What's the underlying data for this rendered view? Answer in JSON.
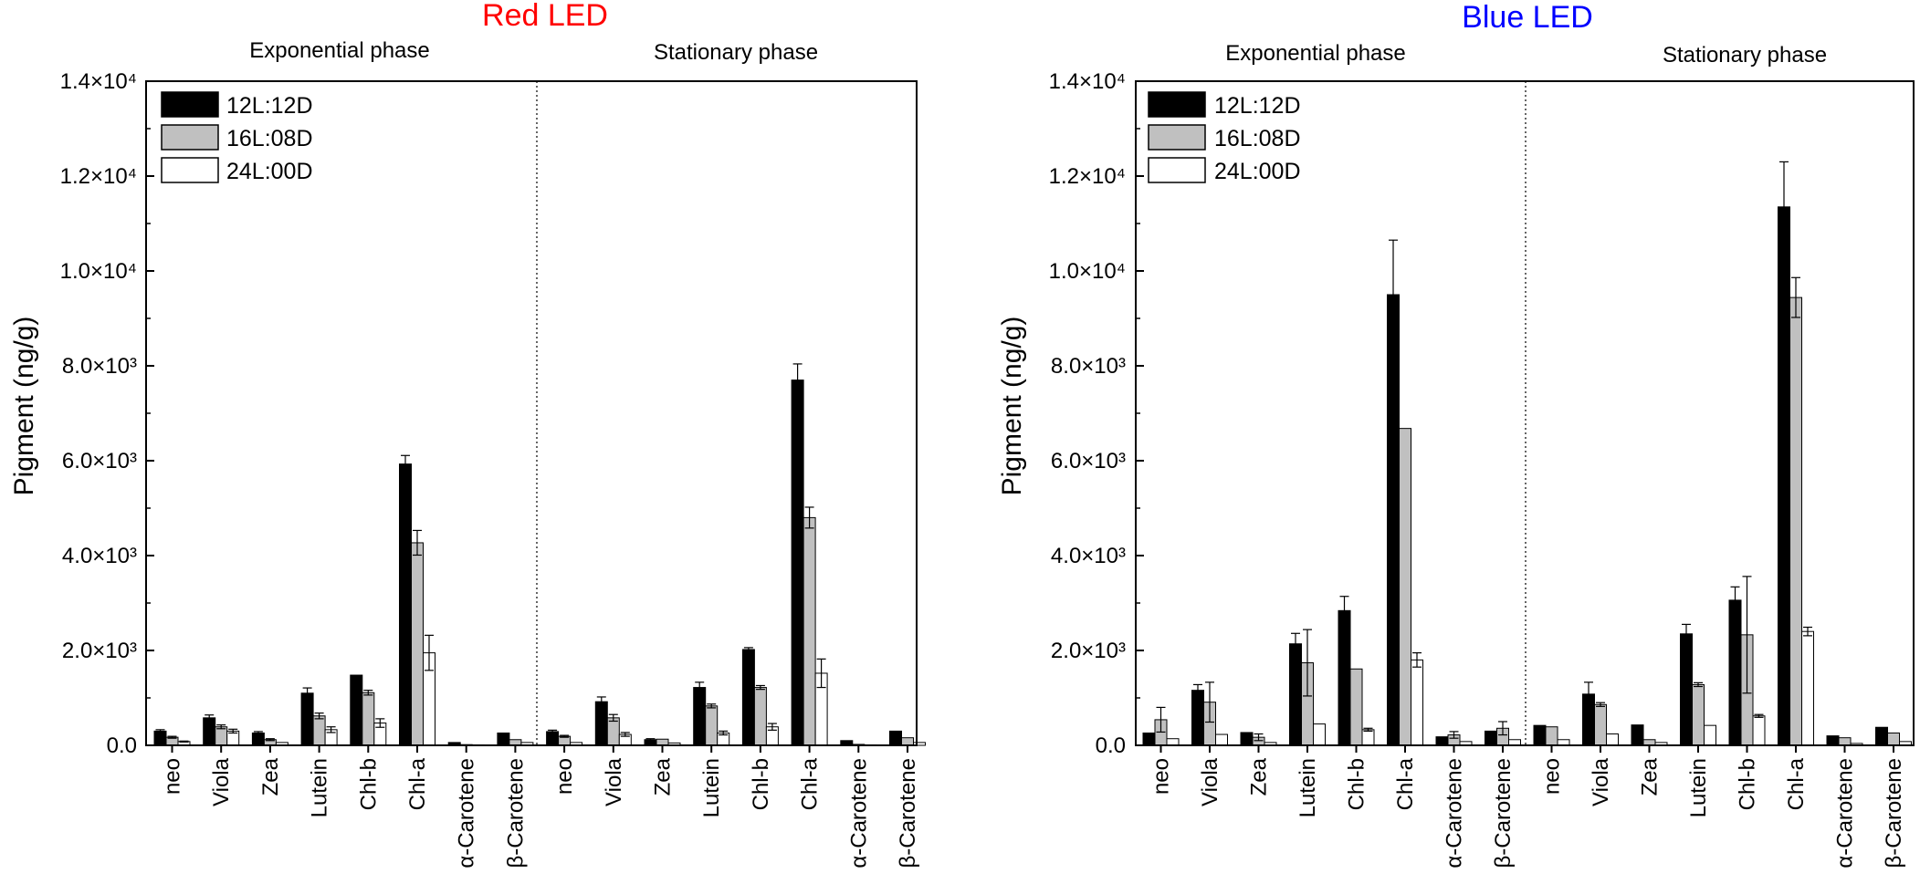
{
  "chart_data": [
    {
      "type": "bar",
      "title": "Red LED",
      "title_color": "#ff0000",
      "ylabel": "Pigment (ng/g)",
      "xlabel": "",
      "ylim": [
        0,
        14000
      ],
      "ytick_labels": [
        "0.0",
        "2.0×10³",
        "4.0×10³",
        "6.0×10³",
        "8.0×10³",
        "1.0×10⁴",
        "1.2×10⁴",
        "1.4×10⁴"
      ],
      "phases": [
        "Exponential phase",
        "Stationary phase"
      ],
      "categories": [
        "neo",
        "Viola",
        "Zea",
        "Lutein",
        "Chl-b",
        "Chl-a",
        "α-Carotene",
        "β-Carotene"
      ],
      "legend_position": "top-left",
      "series": [
        {
          "name": "12L:12D",
          "color": "#000000",
          "exponential": [
            300,
            580,
            260,
            1100,
            1480,
            5930,
            60,
            260
          ],
          "exponential_err": [
            30,
            60,
            30,
            110,
            0,
            180,
            0,
            0
          ],
          "stationary": [
            290,
            920,
            120,
            1220,
            2020,
            7700,
            100,
            300
          ],
          "stationary_err": [
            30,
            100,
            20,
            110,
            40,
            340,
            0,
            0
          ]
        },
        {
          "name": "16L:08D",
          "color": "#c0c0c0",
          "exponential": [
            170,
            390,
            120,
            620,
            1110,
            4270,
            15,
            120
          ],
          "exponential_err": [
            20,
            40,
            20,
            60,
            50,
            260,
            0,
            0
          ],
          "stationary": [
            190,
            580,
            130,
            830,
            1220,
            4800,
            20,
            160
          ],
          "stationary_err": [
            20,
            70,
            0,
            40,
            40,
            220,
            0,
            0
          ]
        },
        {
          "name": "24L:00D",
          "color": "#ffffff",
          "exponential": [
            80,
            300,
            60,
            330,
            470,
            1950,
            10,
            60
          ],
          "exponential_err": [
            10,
            40,
            0,
            60,
            90,
            370,
            0,
            0
          ],
          "stationary": [
            60,
            230,
            50,
            260,
            390,
            1520,
            10,
            60
          ],
          "stationary_err": [
            0,
            40,
            0,
            40,
            70,
            300,
            0,
            0
          ]
        }
      ]
    },
    {
      "type": "bar",
      "title": "Blue LED",
      "title_color": "#0000ff",
      "ylabel": "Pigment (ng/g)",
      "xlabel": "",
      "ylim": [
        0,
        14000
      ],
      "ytick_labels": [
        "0.0",
        "2.0×10³",
        "4.0×10³",
        "6.0×10³",
        "8.0×10³",
        "1.0×10⁴",
        "1.2×10⁴",
        "1.4×10⁴"
      ],
      "phases": [
        "Exponential phase",
        "Stationary phase"
      ],
      "categories": [
        "neo",
        "Viola",
        "Zea",
        "Lutein",
        "Chl-b",
        "Chl-a",
        "α-Carotene",
        "β-Carotene"
      ],
      "legend_position": "top-left",
      "series": [
        {
          "name": "12L:12D",
          "color": "#000000",
          "exponential": [
            260,
            1160,
            270,
            2140,
            2840,
            9500,
            180,
            300
          ],
          "exponential_err": [
            0,
            120,
            0,
            220,
            300,
            1150,
            0,
            0
          ],
          "stationary": [
            420,
            1080,
            430,
            2350,
            3060,
            11350,
            200,
            380
          ],
          "stationary_err": [
            0,
            250,
            0,
            200,
            280,
            950,
            0,
            0
          ]
        },
        {
          "name": "16L:08D",
          "color": "#c0c0c0",
          "exponential": [
            540,
            910,
            170,
            1740,
            1610,
            6680,
            220,
            360
          ],
          "exponential_err": [
            260,
            420,
            70,
            700,
            0,
            0,
            70,
            140
          ],
          "stationary": [
            390,
            860,
            120,
            1280,
            2330,
            9440,
            160,
            260
          ],
          "stationary_err": [
            0,
            40,
            0,
            40,
            1230,
            420,
            0,
            0
          ]
        },
        {
          "name": "24L:00D",
          "color": "#ffffff",
          "exponential": [
            140,
            230,
            60,
            450,
            330,
            1800,
            80,
            120
          ],
          "exponential_err": [
            0,
            0,
            0,
            0,
            30,
            150,
            0,
            0
          ],
          "stationary": [
            120,
            240,
            60,
            420,
            620,
            2400,
            40,
            80
          ],
          "stationary_err": [
            0,
            0,
            0,
            0,
            30,
            90,
            0,
            0
          ]
        }
      ]
    }
  ]
}
